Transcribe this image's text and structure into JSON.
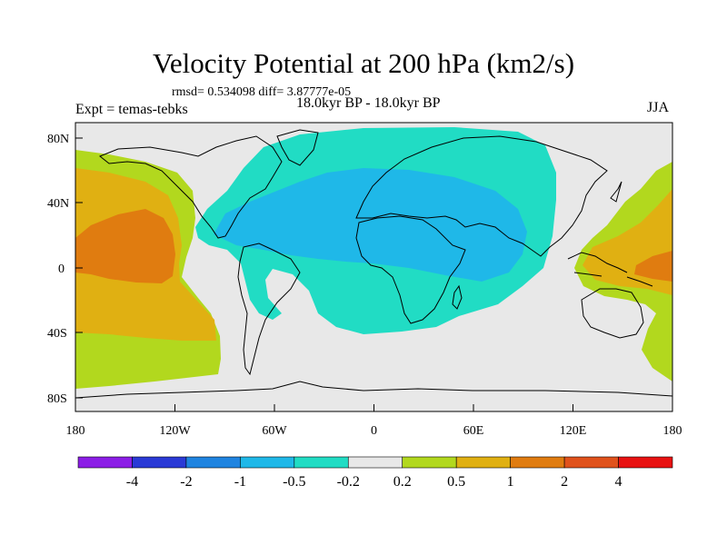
{
  "title": "Velocity Potential at 200 hPa (km2/s)",
  "stats": "rmsd= 0.534098  diff= 3.87777e-05",
  "left_label": "Expt = temas-tebks",
  "center_label": "18.0kyr BP - 18.0kyr BP",
  "right_label": "JJA",
  "lon_labels": [
    "180",
    "120W",
    "60W",
    "0",
    "60E",
    "120E",
    "180"
  ],
  "lat_labels": [
    "80N",
    "40N",
    "0",
    "40S",
    "80S"
  ],
  "colorbar": {
    "labels": [
      "-4",
      "-2",
      "-1",
      "-0.5",
      "-0.2",
      "0.2",
      "0.5",
      "1",
      "2",
      "4"
    ],
    "colors": [
      "#8c1ee6",
      "#2a3ad6",
      "#1f84e0",
      "#1fb8e8",
      "#21dcc4",
      "#e8e8e8",
      "#b2d81e",
      "#e0b012",
      "#e07c10",
      "#e0521c",
      "#e81212"
    ]
  },
  "palette": {
    "ocean": "#e8e8e8",
    "neg02": "#21dcc4",
    "neg05": "#1fb8e8",
    "pos02": "#b2d81e",
    "pos05": "#e0b012",
    "pos1": "#e07c10"
  }
}
